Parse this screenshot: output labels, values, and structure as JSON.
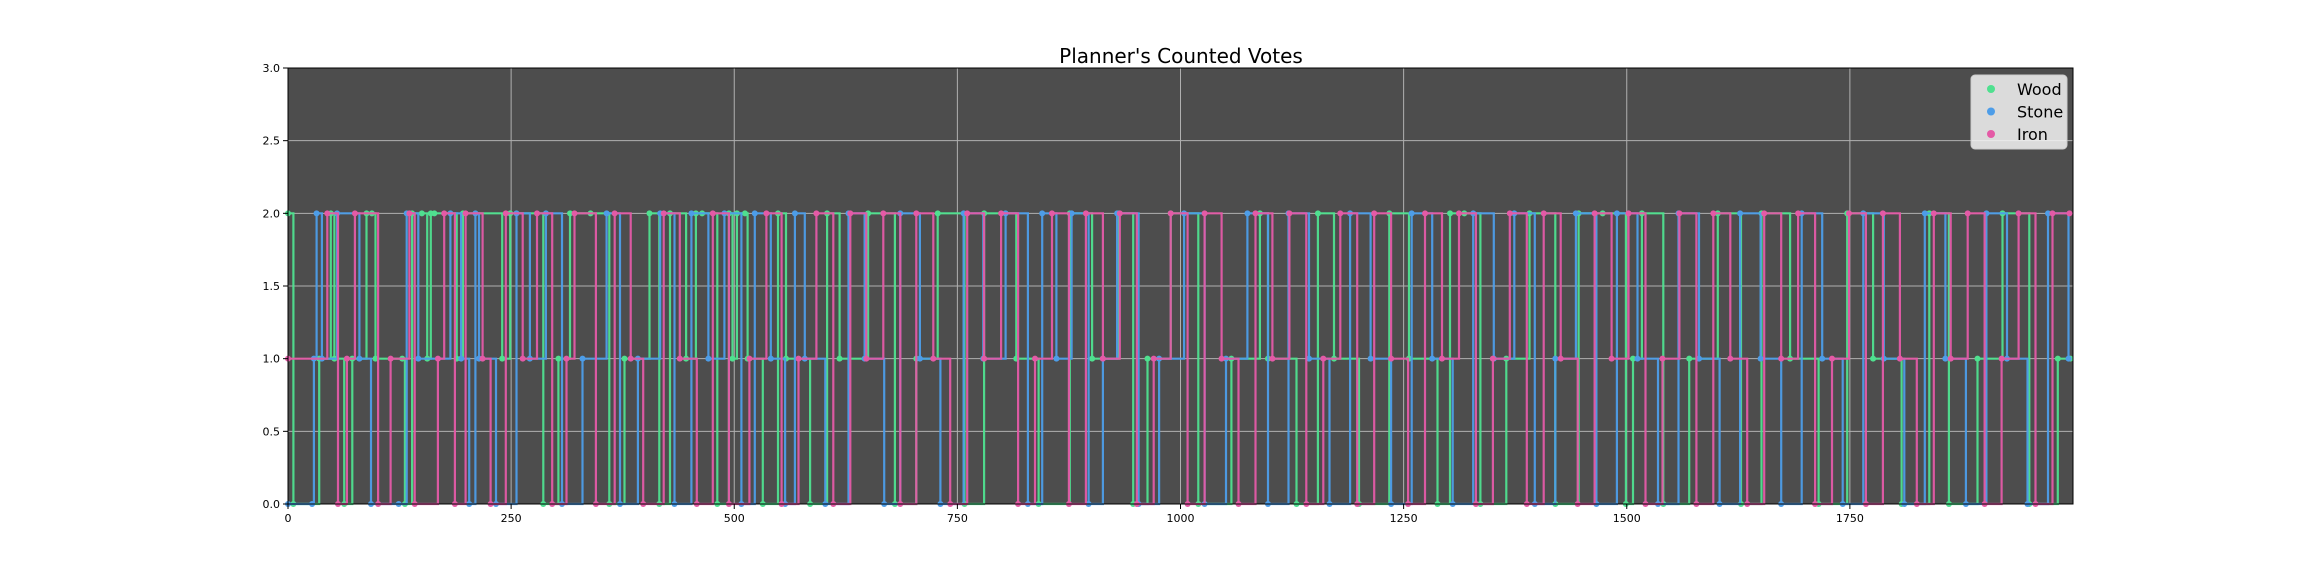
{
  "chart_data": {
    "type": "line",
    "title": "Planner's Counted Votes",
    "xlabel": "",
    "ylabel": "",
    "xlim": [
      0,
      2000
    ],
    "ylim": [
      0,
      3
    ],
    "x_ticks": [
      0,
      250,
      500,
      750,
      1000,
      1250,
      1500,
      1750
    ],
    "y_ticks": [
      "0.0",
      "0.5",
      "1.0",
      "1.5",
      "2.0",
      "2.5",
      "3.0"
    ],
    "grid": true,
    "legend_position": "top-right",
    "background": "#4d4d4d",
    "value_levels": [
      0,
      1,
      2
    ],
    "series": [
      {
        "name": "Wood",
        "color": "#4fe08f",
        "x": [
          0,
          6,
          35,
          48,
          52,
          63,
          72,
          88,
          94,
          98,
          128,
          131,
          139,
          150,
          156,
          160,
          164,
          189,
          196,
          240,
          249,
          286,
          303,
          316,
          339,
          360,
          377,
          405,
          416,
          428,
          446,
          457,
          464,
          481,
          494,
          498,
          503,
          512,
          515,
          532,
          549,
          558,
          585,
          604,
          618,
          650,
          680,
          704,
          728,
          758,
          780,
          816,
          841,
          876,
          901,
          931,
          947,
          963,
          989,
          1020,
          1057,
          1089,
          1098,
          1130,
          1154,
          1172,
          1200,
          1234,
          1256,
          1288,
          1302,
          1318,
          1336,
          1365,
          1391,
          1420,
          1446,
          1473,
          1499,
          1507,
          1517,
          1541,
          1570,
          1602,
          1628,
          1651,
          1683,
          1715,
          1747,
          1776,
          1808,
          1839,
          1861,
          1893,
          1921,
          1951,
          1983,
          1997
        ],
        "y": [
          2,
          0,
          1,
          2,
          1,
          0,
          1,
          2,
          2,
          1,
          1,
          0,
          2,
          2,
          1,
          2,
          2,
          1,
          2,
          1,
          2,
          0,
          1,
          2,
          2,
          0,
          1,
          2,
          0,
          2,
          1,
          2,
          2,
          0,
          2,
          1,
          2,
          2,
          1,
          0,
          2,
          1,
          0,
          2,
          1,
          2,
          0,
          1,
          2,
          0,
          2,
          1,
          0,
          2,
          1,
          2,
          0,
          1,
          2,
          0,
          1,
          2,
          1,
          0,
          2,
          1,
          0,
          2,
          1,
          0,
          2,
          2,
          0,
          1,
          2,
          0,
          2,
          2,
          0,
          1,
          2,
          0,
          1,
          2,
          0,
          2,
          1,
          0,
          2,
          1,
          0,
          2,
          0,
          1,
          2,
          0,
          1,
          1
        ]
      },
      {
        "name": "Stone",
        "color": "#4d9de8",
        "x": [
          0,
          27,
          29,
          32,
          38,
          55,
          80,
          93,
          124,
          133,
          146,
          182,
          194,
          203,
          210,
          214,
          233,
          256,
          271,
          289,
          307,
          330,
          357,
          372,
          392,
          417,
          433,
          452,
          471,
          489,
          508,
          523,
          541,
          557,
          568,
          579,
          602,
          628,
          646,
          668,
          686,
          708,
          731,
          757,
          779,
          804,
          829,
          845,
          861,
          878,
          897,
          913,
          929,
          953,
          976,
          1004,
          1027,
          1051,
          1075,
          1098,
          1121,
          1144,
          1167,
          1190,
          1213,
          1236,
          1259,
          1282,
          1305,
          1328,
          1351,
          1374,
          1397,
          1420,
          1443,
          1466,
          1489,
          1512,
          1535,
          1558,
          1581,
          1604,
          1627,
          1650,
          1673,
          1696,
          1719,
          1742,
          1765,
          1788,
          1811,
          1834,
          1857,
          1880,
          1903,
          1926,
          1949,
          1972,
          1995
        ],
        "y": [
          0,
          0,
          1,
          2,
          1,
          2,
          1,
          0,
          0,
          2,
          1,
          2,
          1,
          0,
          2,
          1,
          0,
          2,
          1,
          2,
          0,
          1,
          2,
          0,
          1,
          2,
          0,
          2,
          1,
          2,
          0,
          2,
          1,
          0,
          2,
          1,
          0,
          2,
          1,
          0,
          2,
          1,
          0,
          2,
          1,
          2,
          0,
          2,
          1,
          2,
          0,
          1,
          2,
          0,
          1,
          2,
          0,
          1,
          2,
          0,
          2,
          1,
          0,
          2,
          1,
          0,
          2,
          1,
          0,
          2,
          1,
          2,
          0,
          1,
          2,
          0,
          2,
          1,
          0,
          2,
          1,
          0,
          2,
          1,
          0,
          2,
          1,
          0,
          2,
          1,
          0,
          2,
          1,
          0,
          2,
          1,
          0,
          2,
          1
        ]
      },
      {
        "name": "Iron",
        "color": "#e45aa6",
        "x": [
          0,
          44,
          56,
          66,
          75,
          101,
          115,
          136,
          142,
          168,
          175,
          187,
          199,
          218,
          227,
          244,
          263,
          279,
          296,
          312,
          321,
          345,
          366,
          384,
          398,
          421,
          439,
          458,
          476,
          494,
          517,
          536,
          553,
          572,
          592,
          611,
          630,
          648,
          667,
          686,
          704,
          723,
          742,
          761,
          780,
          799,
          818,
          837,
          856,
          875,
          894,
          913,
          932,
          951,
          970,
          989,
          1008,
          1027,
          1046,
          1065,
          1084,
          1103,
          1122,
          1141,
          1160,
          1179,
          1198,
          1217,
          1236,
          1255,
          1274,
          1293,
          1312,
          1331,
          1350,
          1369,
          1388,
          1407,
          1426,
          1445,
          1464,
          1483,
          1502,
          1521,
          1540,
          1559,
          1578,
          1597,
          1616,
          1635,
          1654,
          1673,
          1692,
          1711,
          1730,
          1749,
          1768,
          1787,
          1806,
          1825,
          1844,
          1863,
          1882,
          1901,
          1920,
          1939,
          1958,
          1977,
          1996
        ],
        "y": [
          1,
          2,
          0,
          1,
          2,
          0,
          1,
          2,
          0,
          1,
          2,
          0,
          2,
          1,
          0,
          2,
          1,
          2,
          0,
          1,
          2,
          0,
          2,
          1,
          0,
          2,
          1,
          0,
          2,
          0,
          1,
          2,
          0,
          1,
          2,
          0,
          2,
          1,
          2,
          0,
          2,
          1,
          0,
          2,
          1,
          2,
          0,
          1,
          2,
          0,
          2,
          1,
          2,
          0,
          1,
          2,
          0,
          2,
          1,
          0,
          2,
          1,
          2,
          0,
          1,
          2,
          0,
          2,
          1,
          0,
          2,
          1,
          2,
          0,
          1,
          2,
          0,
          2,
          1,
          0,
          2,
          1,
          2,
          0,
          1,
          2,
          0,
          2,
          1,
          0,
          2,
          1,
          2,
          0,
          1,
          2,
          0,
          2,
          1,
          0,
          2,
          1,
          2,
          0,
          1,
          2,
          0,
          2,
          2
        ]
      }
    ]
  }
}
